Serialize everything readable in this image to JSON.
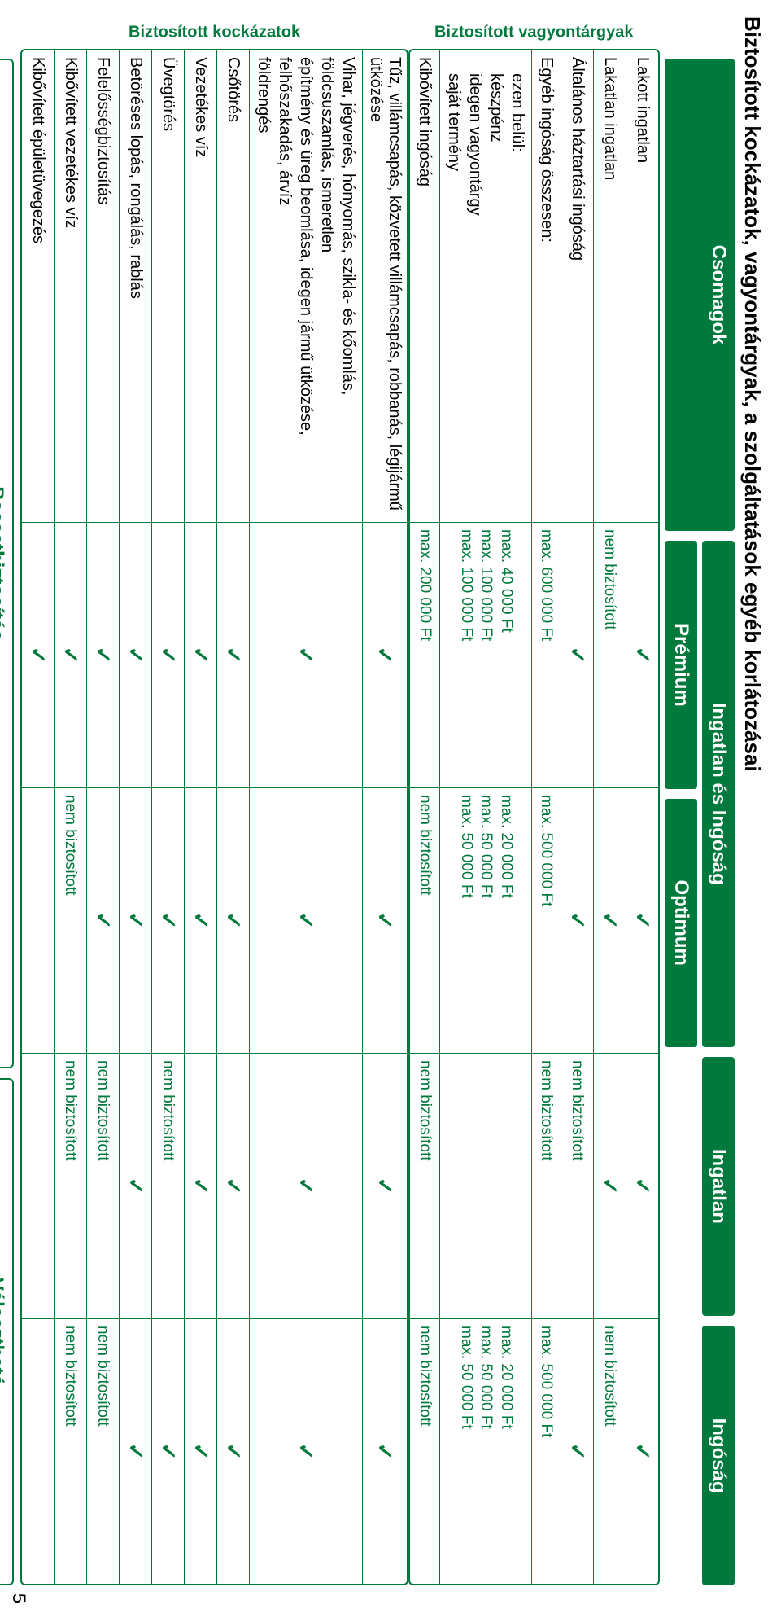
{
  "title": "Biztosított kockázatok, vagyontárgyak, a szolgáltatások egyéb korlátozásai",
  "headers": {
    "csomagok": "Csomagok",
    "group": "Ingatlan és Ingóság",
    "premium": "Prémium",
    "optimum": "Optimum",
    "ingatlan": "Ingatlan",
    "ingosag": "Ingóság"
  },
  "sections": {
    "vagyon": {
      "label": "Biztosított vagyontárgyak"
    },
    "kockazat": {
      "label": "Biztosított kockázatok"
    }
  },
  "check": "✓",
  "nem": "nem biztosított",
  "rows": {
    "lakott": {
      "label": "Lakott ingatlan",
      "p": "✓",
      "o": "✓",
      "i": "✓",
      "g": "✓"
    },
    "lakatlan": {
      "label": "Lakatlan ingatlan",
      "p": "nem biztosított",
      "o": "✓",
      "i": "✓",
      "g": "nem biztosított"
    },
    "altalanos": {
      "label": "Általános háztartási ingóság",
      "p": "✓",
      "o": "✓",
      "i": "nem biztosított",
      "g": "✓"
    },
    "egyeb": {
      "label": "Egyéb ingóság összesen:",
      "p": "max. 600 000 Ft",
      "o": "max. 500 000 Ft",
      "i": "nem biztosított",
      "g": "max. 500 000 Ft"
    },
    "ezen": {
      "labels": [
        "ezen belül:",
        "készpénz",
        "idegen vagyontárgy",
        "saját termény"
      ],
      "p": [
        "",
        "max.   40 000 Ft",
        "max. 100 000 Ft",
        "max. 100 000 Ft"
      ],
      "o": [
        "",
        "max. 20 000 Ft",
        "max. 50 000 Ft",
        "max. 50 000 Ft"
      ],
      "i": [
        "",
        "",
        "",
        ""
      ],
      "g": [
        "",
        "max. 20 000 Ft",
        "max. 50 000 Ft",
        "max. 50 000 Ft"
      ]
    },
    "kibov_ing": {
      "label": "Kibővített ingóság",
      "p": "max. 200 000 Ft",
      "o": "nem biztosított",
      "i": "nem biztosított",
      "g": "nem biztosított"
    },
    "tuz": {
      "label": "Tűz, villámcsapás, közvetett villámcsapás, robbanás, légijármű ütközése",
      "p": "✓",
      "o": "✓",
      "i": "✓",
      "g": "✓"
    },
    "vihar": {
      "labels": [
        "Vihar, jégverés, hónyomás, szikla- és kőomlás, földcsuszamlás, ismeretlen",
        "építmény és üreg beomlása, idegen jármű ütközése, felhőszakadás, árvíz",
        "földrengés"
      ],
      "p": "✓",
      "o": "✓",
      "i": "✓",
      "g": "✓"
    },
    "csotores": {
      "label": "Csőtörés",
      "p": "✓",
      "o": "✓",
      "i": "✓",
      "g": "✓"
    },
    "vezetekes": {
      "label": "Vezetékes víz",
      "p": "✓",
      "o": "✓",
      "i": "✓",
      "g": "✓"
    },
    "uvegtores": {
      "label": "Üvegtörés",
      "p": "✓",
      "o": "✓",
      "i": "nem biztosított",
      "g": "✓"
    },
    "betores": {
      "label": "Betöréses lopás, rongálás, rablás",
      "p": "✓",
      "o": "✓",
      "i": "✓",
      "g": "✓"
    },
    "felelosseg": {
      "label": "Felelősségbiztosítás",
      "p": "✓",
      "o": "✓",
      "i": "nem biztosított",
      "g": "nem biztosított"
    },
    "kibov_vez": {
      "label": "Kibővített vezetékes víz",
      "p": "✓",
      "o": "nem biztosított",
      "i": "nem biztosított",
      "g": "nem biztosított"
    },
    "kibov_ep": {
      "label": "Kibővített épületüvegezés",
      "p": "✓",
      "o": "",
      "i": "",
      "g": ""
    }
  },
  "footer": {
    "baeset": "Baesetbiztosítás",
    "valaszt": "Választható"
  },
  "pagenum": "5",
  "colors": {
    "brand": "#007a3c"
  }
}
